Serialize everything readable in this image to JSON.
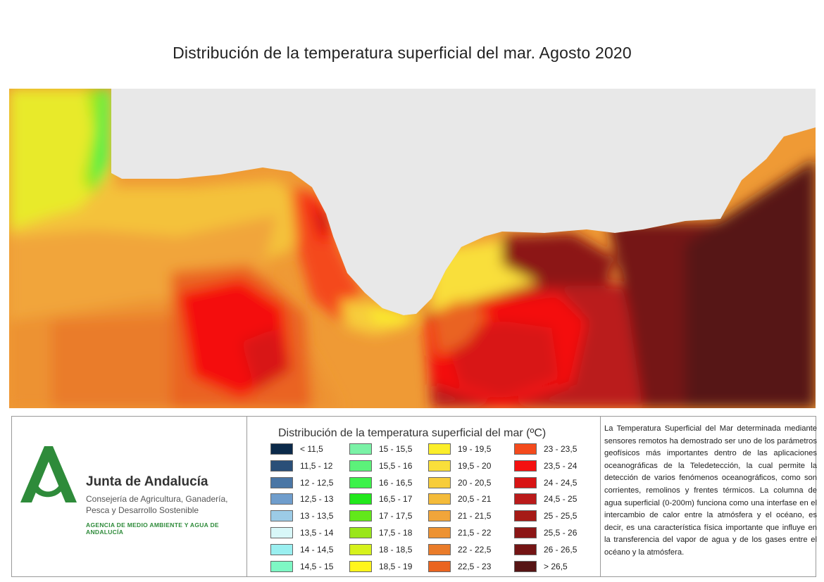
{
  "title": "Distribución de la temperatura superficial del mar. Agosto 2020",
  "logo": {
    "name": "Junta de Andalucía",
    "subtitle": "Consejería de Agricultura, Ganadería, Pesca y Desarrollo Sostenible",
    "agency": "AGENCIA DE MEDIO AMBIENTE Y AGUA DE ANDALUCÍA",
    "color": "#2e8b3a"
  },
  "legend": {
    "title": "Distribución de la temperatura superficial del mar (ºC)",
    "items": [
      {
        "label": "< 11,5",
        "color": "#0b2a4a"
      },
      {
        "label": "11,5 - 12",
        "color": "#2a4f78"
      },
      {
        "label": "12 - 12,5",
        "color": "#4a76a5"
      },
      {
        "label": "12,5 - 13",
        "color": "#6f9dcc"
      },
      {
        "label": "13 - 13,5",
        "color": "#9ccbe6"
      },
      {
        "label": "13,5 - 14",
        "color": "#d8f7f8"
      },
      {
        "label": "14 - 14,5",
        "color": "#9aeff0"
      },
      {
        "label": "14,5 - 15",
        "color": "#7ef7c4"
      },
      {
        "label": "15 - 15,5",
        "color": "#7af2a6"
      },
      {
        "label": "15,5 - 16",
        "color": "#5cf27a"
      },
      {
        "label": "16 - 16,5",
        "color": "#3cf24a"
      },
      {
        "label": "16,5 - 17",
        "color": "#22e81c"
      },
      {
        "label": "17 - 17,5",
        "color": "#62e81a"
      },
      {
        "label": "17,5 - 18",
        "color": "#9ae61a"
      },
      {
        "label": "18 - 18,5",
        "color": "#d6f21c"
      },
      {
        "label": "18,5 - 19",
        "color": "#fff51c"
      },
      {
        "label": "19 - 19,5",
        "color": "#fbee2a"
      },
      {
        "label": "19,5 - 20",
        "color": "#f9df3a"
      },
      {
        "label": "20 - 20,5",
        "color": "#f7cd3a"
      },
      {
        "label": "20,5 - 21",
        "color": "#f4bb3a"
      },
      {
        "label": "21 - 21,5",
        "color": "#f1a53a"
      },
      {
        "label": "21,5 - 22",
        "color": "#ed9232"
      },
      {
        "label": "22 - 22,5",
        "color": "#ea7c2a"
      },
      {
        "label": "22,5 - 23",
        "color": "#ea6420"
      },
      {
        "label": "23 - 23,5",
        "color": "#f44a1c"
      },
      {
        "label": "23,5 - 24",
        "color": "#f41010"
      },
      {
        "label": "24 - 24,5",
        "color": "#d81414"
      },
      {
        "label": "24,5 - 25",
        "color": "#ba1a1a"
      },
      {
        "label": "25 - 25,5",
        "color": "#a61a16"
      },
      {
        "label": "25,5 - 26",
        "color": "#8c1616"
      },
      {
        "label": "26 - 26,5",
        "color": "#741414"
      },
      {
        "label": "> 26,5",
        "color": "#561414"
      }
    ]
  },
  "description": "La Temperatura Superficial del Mar determinada mediante sensores remotos ha demostrado ser uno de los parámetros geofísicos más importantes dentro de las aplicaciones oceanográficas de la Teledetección, la cual permite la detección de varios fenómenos oceanográficos, como son corrientes, remolinos y frentes térmicos. La columna de agua superficial (0-200m) funciona como una interfase en el intercambio de calor entre la atmósfera y el océano, es decir, es una característica física importante que influye en la transferencia del vapor de agua y de los gases entre el océano y la atmósfera.",
  "colors": {
    "land": "#e8e8e8",
    "border": "#9a9a9a"
  }
}
